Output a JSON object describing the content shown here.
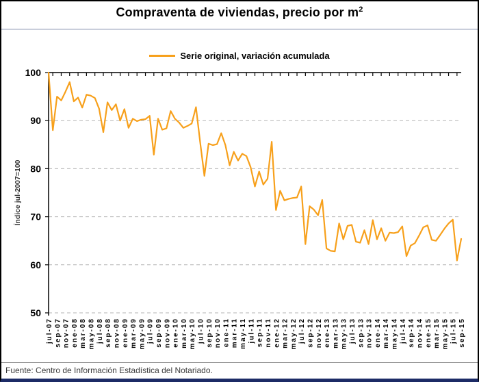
{
  "title": {
    "text": "Compraventa de viviendas, precio por m",
    "sup": "2"
  },
  "legend": {
    "label": "Serie original, variación acumulada",
    "line_color": "#f7a01b"
  },
  "y_axis": {
    "title": "Índice jul-2007=100",
    "ticks": [
      100,
      90,
      80,
      70,
      60,
      50
    ]
  },
  "footer": {
    "source": "Fuente: Centro de Información Estadística del Notariado."
  },
  "chart_data": {
    "type": "line",
    "title": "Compraventa de viviendas, precio por m2",
    "ylabel": "Índice jul-2007=100",
    "ylim": [
      50,
      100
    ],
    "grid": "horizontal-dashed",
    "legend_position": "top-center",
    "x_label_every": 2,
    "x": [
      "jul-07",
      "ago-07",
      "sep-07",
      "oct-07",
      "nov-07",
      "dic-07",
      "ene-08",
      "feb-08",
      "mar-08",
      "abr-08",
      "may-08",
      "jun-08",
      "jul-08",
      "ago-08",
      "sep-08",
      "oct-08",
      "nov-08",
      "dic-08",
      "ene-09",
      "feb-09",
      "mar-09",
      "abr-09",
      "may-09",
      "jun-09",
      "jul-09",
      "ago-09",
      "sep-09",
      "oct-09",
      "nov-09",
      "dic-09",
      "ene-10",
      "feb-10",
      "mar-10",
      "abr-10",
      "may-10",
      "jun-10",
      "jul-10",
      "ago-10",
      "sep-10",
      "oct-10",
      "nov-10",
      "dic-10",
      "ene-11",
      "feb-11",
      "mar-11",
      "abr-11",
      "may-11",
      "jun-11",
      "jul-11",
      "ago-11",
      "sep-11",
      "oct-11",
      "nov-11",
      "dic-11",
      "ene-12",
      "feb-12",
      "mar-12",
      "abr-12",
      "may-12",
      "jun-12",
      "jul-12",
      "ago-12",
      "sep-12",
      "oct-12",
      "nov-12",
      "dic-12",
      "ene-13",
      "feb-13",
      "mar-13",
      "abr-13",
      "may-13",
      "jun-13",
      "jul-13",
      "ago-13",
      "sep-13",
      "oct-13",
      "nov-13",
      "dic-13",
      "ene-14",
      "feb-14",
      "mar-14",
      "abr-14",
      "may-14",
      "jun-14",
      "jul-14",
      "ago-14",
      "sep-14",
      "oct-14",
      "nov-14",
      "dic-14",
      "ene-15",
      "feb-15",
      "mar-15",
      "abr-15",
      "may-15",
      "jun-15",
      "jul-15",
      "ago-15",
      "sep-15"
    ],
    "series": [
      {
        "name": "Serie original, variación acumulada",
        "color": "#f7a01b",
        "values": [
          100,
          88,
          95,
          94.2,
          96,
          98,
          94,
          94.8,
          92.7,
          95.4,
          95.2,
          94.7,
          92.5,
          87.6,
          93.8,
          92.2,
          93.4,
          90,
          92.4,
          88.5,
          90.4,
          89.9,
          90.2,
          90.3,
          91,
          82.9,
          90.4,
          88.1,
          88.4,
          92,
          90.4,
          89.6,
          88.5,
          88.9,
          89.4,
          92.8,
          85.5,
          78.5,
          85.2,
          84.9,
          85.1,
          87.4,
          84.9,
          80.7,
          83.5,
          81.7,
          83.1,
          82.6,
          80.3,
          76.3,
          79.4,
          76.7,
          77.9,
          85.6,
          71.4,
          75.4,
          73.4,
          73.7,
          73.9,
          74,
          76.3,
          64.3,
          72.2,
          71.5,
          70.3,
          73.5,
          63.4,
          62.9,
          62.8,
          68.6,
          65.3,
          68.1,
          68.3,
          64.8,
          64.6,
          67.2,
          64.3,
          69.3,
          65.3,
          67.6,
          65,
          66.7,
          66.6,
          66.8,
          68,
          61.8,
          64,
          64.5,
          66.1,
          67.8,
          68.2,
          65.2,
          65,
          66.2,
          67.5,
          68.6,
          69.4,
          60.9,
          65.4
        ]
      }
    ]
  }
}
